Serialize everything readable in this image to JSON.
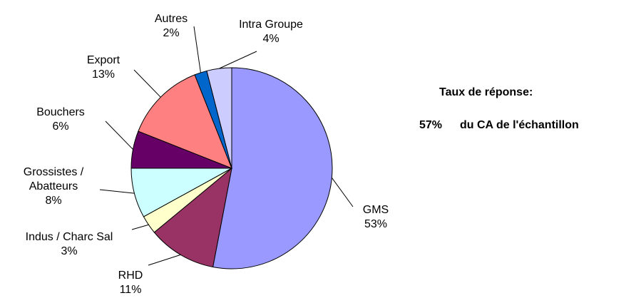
{
  "chart_data": {
    "type": "pie",
    "categories": [
      "GMS",
      "RHD",
      "Indus / Charc Sal",
      "Grossistes / Abatteurs",
      "Bouchers",
      "Export",
      "Autres",
      "Intra Groupe"
    ],
    "values": [
      53,
      11,
      3,
      8,
      6,
      13,
      2,
      4
    ],
    "value_labels": [
      "53%",
      "11%",
      "3%",
      "8%",
      "6%",
      "13%",
      "2%",
      "4%"
    ],
    "colors": [
      "#9999ff",
      "#993366",
      "#ffffcc",
      "#ccffff",
      "#660066",
      "#ff8080",
      "#0066cc",
      "#ccccff"
    ],
    "annotation": {
      "heading": "Taux de réponse:",
      "rate": "57%",
      "text": "du CA de l'échantillon"
    }
  }
}
